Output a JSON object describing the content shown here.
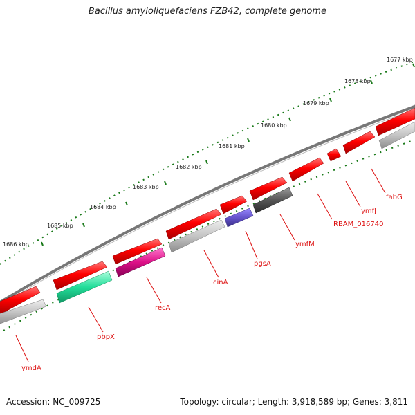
{
  "title": "Bacillus amyloliquefaciens FZB42, complete genome",
  "footer": {
    "accession": "Accession: NC_009725",
    "stats": "Topology: circular; Length: 3,918,589 bp; Genes: 3,811"
  },
  "colors": {
    "forward_cds": "#ee0000",
    "reverse_cds": "#b8b8b8",
    "backbone": "#888888",
    "tick_marks": "#1a7a1a",
    "gene_label": "#dd1111",
    "pbpX": "#22dd99",
    "recA": "#dd1188",
    "pgsA": "#6655cc",
    "ymfM": "#555555"
  },
  "scale_labels": [
    "1677 kbp",
    "1678 kbp",
    "1679 kbp",
    "1680 kbp",
    "1681 kbp",
    "1682 kbp",
    "1683 kbp",
    "1684 kbp",
    "1685 kbp",
    "1686 kbp"
  ],
  "gene_labels": [
    "fabG",
    "ymfJ",
    "RBAM_016740",
    "ymfM",
    "pgsA",
    "cinA",
    "recA",
    "pbpX",
    "ymdA"
  ]
}
